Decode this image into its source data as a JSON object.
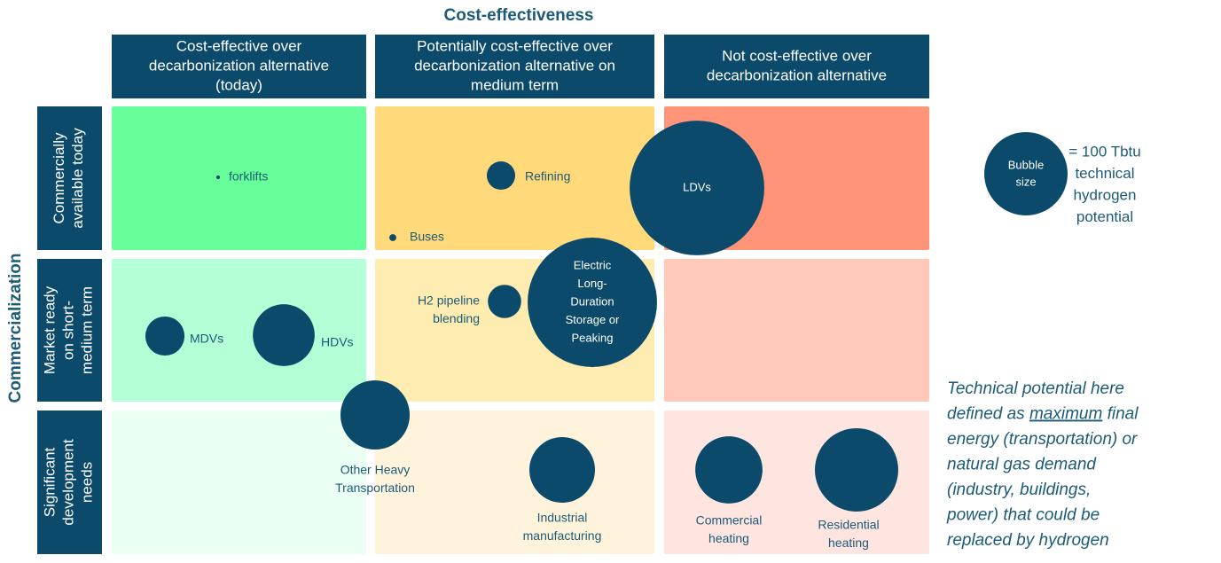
{
  "title": "Cost-effectiveness",
  "row_axis_title": "Commercialization",
  "columns": [
    [
      "Cost-effective over",
      "decarbonization alternative",
      "(today)"
    ],
    [
      "Potentially cost-effective over",
      "decarbonization alternative on",
      "medium term"
    ],
    [
      "Not cost-effective over",
      "decarbonization alternative"
    ]
  ],
  "rows": [
    [
      "Commercially",
      "available today"
    ],
    [
      "Market ready",
      "on short-",
      "medium term"
    ],
    [
      "Significant",
      "development",
      "needs"
    ]
  ],
  "bubbles": [
    {
      "label": [
        "forklifts"
      ],
      "size": 0.2
    },
    {
      "label": [
        "Refining"
      ],
      "size": 11.6
    },
    {
      "label": [
        "Buses"
      ],
      "size": 0.7
    },
    {
      "label": [
        "LDVs"
      ],
      "size": 261
    },
    {
      "label": [
        "H2 pipeline",
        "blending"
      ],
      "size": 16
    },
    {
      "label": [
        "Electric",
        "Long-",
        "Duration",
        "Storage or",
        "Peaking"
      ],
      "size": 241
    },
    {
      "label": [
        "MDVs"
      ],
      "size": 22
    },
    {
      "label": [
        "HDVs"
      ],
      "size": 55
    },
    {
      "label": [
        "Other Heavy",
        "Transportation"
      ],
      "size": 69
    },
    {
      "label": [
        "Industrial",
        "manufacturing"
      ],
      "size": 62
    },
    {
      "label": [
        "Commercial",
        "heating"
      ],
      "size": 65
    },
    {
      "label": [
        "Residential",
        "heating"
      ],
      "size": 100
    }
  ],
  "legend": {
    "bubble_text": [
      "Bubble",
      "size"
    ],
    "value": 100,
    "label": [
      "= 100 Tbtu",
      "technical",
      "hydrogen",
      "potential"
    ]
  },
  "note": [
    [
      "Technical potential here"
    ],
    [
      "defined as ",
      "maximum",
      " final"
    ],
    [
      "energy (transportation) or"
    ],
    [
      "natural gas demand"
    ],
    [
      "(industry, buildings,"
    ],
    [
      "power) that could be"
    ],
    [
      "replaced by hydrogen"
    ]
  ]
}
